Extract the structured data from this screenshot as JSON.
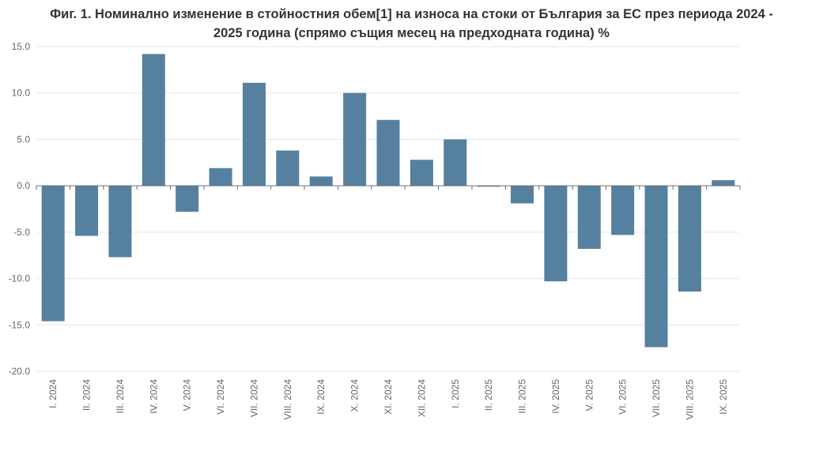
{
  "chart_data": {
    "type": "bar",
    "title_line1": "Фиг. 1. Номинално изменение в стойностния обем[1] на износа на стоки от България за ЕС през периода 2024 -",
    "title_line2": "2025 година (спрямо същия месец на предходната година) %",
    "categories": [
      "I. 2024",
      "II. 2024",
      "III. 2024",
      "IV. 2024",
      "V. 2024",
      "VI. 2024",
      "VII. 2024",
      "VIII. 2024",
      "IX. 2024",
      "X. 2024",
      "XI. 2024",
      "XII. 2024",
      "I. 2025",
      "II. 2025",
      "III. 2025",
      "IV. 2025",
      "V. 2025",
      "VI. 2025",
      "VII. 2025",
      "VIII. 2025",
      "IX. 2025"
    ],
    "values": [
      -14.6,
      -5.4,
      -7.7,
      14.2,
      -2.8,
      1.9,
      11.1,
      3.8,
      1.0,
      10.0,
      7.1,
      2.8,
      5.0,
      -0.1,
      -1.9,
      -10.3,
      -6.8,
      -5.3,
      -17.4,
      -11.4,
      0.6
    ],
    "ylim": [
      -20,
      15
    ],
    "yticks": [
      "15.0",
      "10.0",
      "5.0",
      "0.0",
      "-5.0",
      "-10.0",
      "-15.0",
      "-20.0"
    ],
    "ytick_values": [
      15,
      10,
      5,
      0,
      -5,
      -10,
      -15,
      -20
    ],
    "xlabel": "",
    "ylabel": "",
    "grid": true,
    "bar_color": "#56809f"
  }
}
